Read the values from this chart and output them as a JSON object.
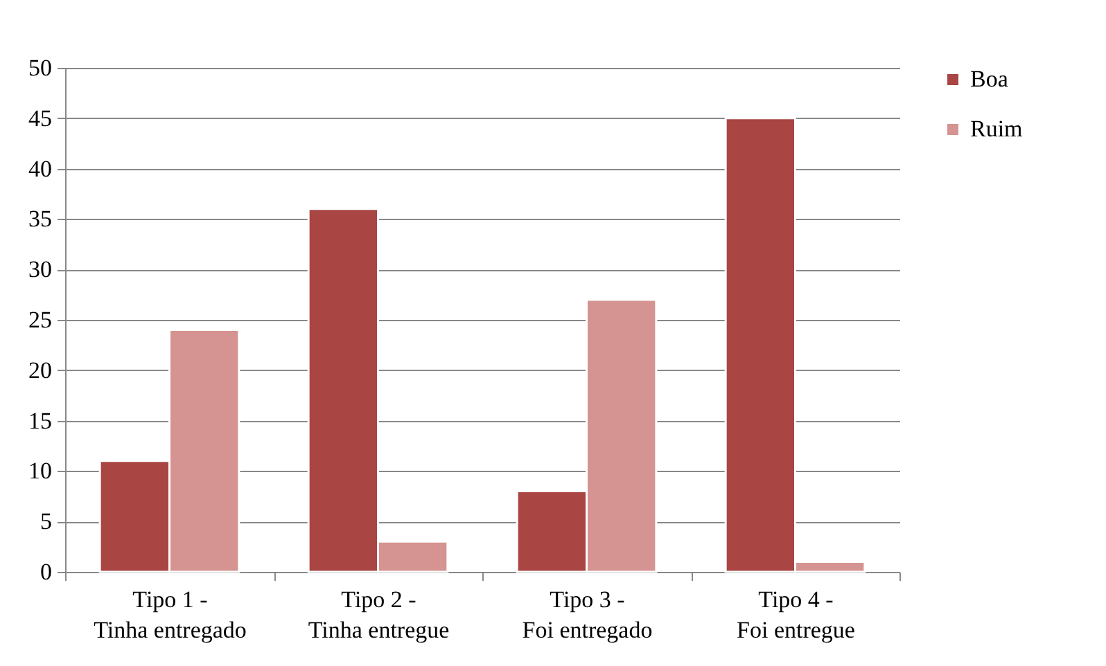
{
  "chart_data": {
    "type": "bar",
    "categories": [
      "Tipo 1 -\nTinha entregado",
      "Tipo 2 -\nTinha entregue",
      "Tipo 3 -\nFoi entregado",
      "Tipo 4 -\nFoi entregue"
    ],
    "series": [
      {
        "name": "Boa",
        "color": "#a94543",
        "values": [
          11,
          36,
          8,
          45
        ]
      },
      {
        "name": "Ruim",
        "color": "#d59391",
        "values": [
          24,
          3,
          27,
          1
        ]
      }
    ],
    "ylim": [
      0,
      50
    ],
    "yticks": [
      0,
      5,
      10,
      15,
      20,
      25,
      30,
      35,
      40,
      45,
      50
    ],
    "grid": "y",
    "legend": "right"
  }
}
